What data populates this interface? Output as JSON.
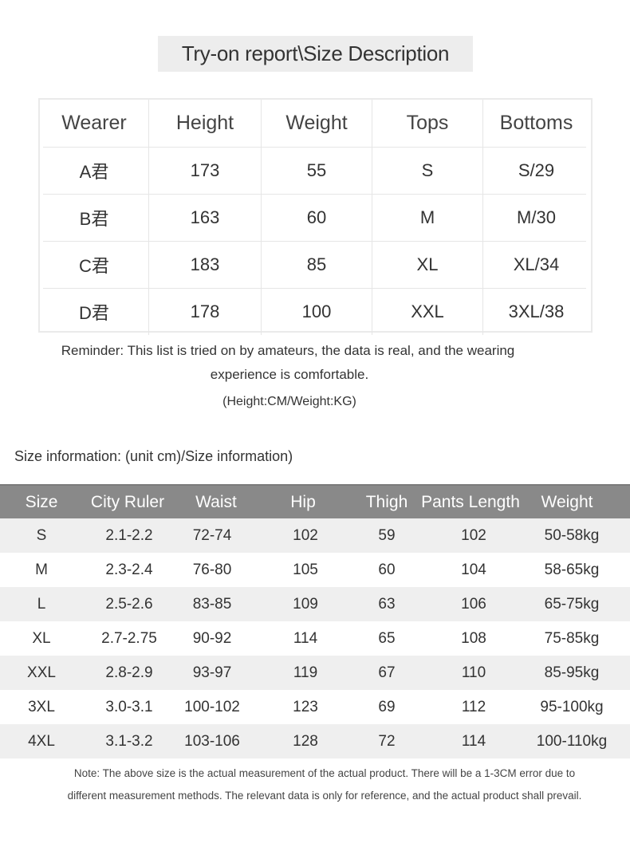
{
  "title": "Try-on report\\Size Description",
  "tryon": {
    "headers": [
      "Wearer",
      "Height",
      "Weight",
      "Tops",
      "Bottoms"
    ],
    "rows": [
      [
        "A君",
        "173",
        "55",
        "S",
        "S/29"
      ],
      [
        "B君",
        "163",
        "60",
        "M",
        "M/30"
      ],
      [
        "C君",
        "183",
        "85",
        "XL",
        "XL/34"
      ],
      [
        "D君",
        "178",
        "100",
        "XXL",
        "3XL/38"
      ]
    ]
  },
  "reminder": {
    "line1": "Reminder: This list is tried on by amateurs, the data is real, and the wearing",
    "line2": "experience is comfortable.",
    "units": "(Height:CM/Weight:KG)"
  },
  "size_info_label": "Size information: (unit cm)/Size information)",
  "sizes": {
    "headers": [
      "Size",
      "City Ruler",
      "Waist",
      "Hip",
      "Thigh",
      "Pants Length",
      "Weight"
    ],
    "rows": [
      [
        "S",
        "2.1-2.2",
        "72-74",
        "102",
        "59",
        "102",
        "50-58kg"
      ],
      [
        "M",
        "2.3-2.4",
        "76-80",
        "105",
        "60",
        "104",
        "58-65kg"
      ],
      [
        "L",
        "2.5-2.6",
        "83-85",
        "109",
        "63",
        "106",
        "65-75kg"
      ],
      [
        "XL",
        "2.7-2.75",
        "90-92",
        "114",
        "65",
        "108",
        "75-85kg"
      ],
      [
        "XXL",
        "2.8-2.9",
        "93-97",
        "119",
        "67",
        "110",
        "85-95kg"
      ],
      [
        "3XL",
        "3.0-3.1",
        "100-102",
        "123",
        "69",
        "112",
        "95-100kg"
      ],
      [
        "4XL",
        "3.1-3.2",
        "103-106",
        "128",
        "72",
        "114",
        "100-110kg"
      ]
    ]
  },
  "note": {
    "line1": "Note: The above size is the actual measurement of the actual product. There will be a 1-3CM error due to",
    "line2": "different measurement methods. The relevant data is only for reference, and the actual product shall prevail."
  },
  "colors": {
    "header_bar": "#898989",
    "alt_row": "#efefef",
    "title_bg": "#ededed"
  }
}
